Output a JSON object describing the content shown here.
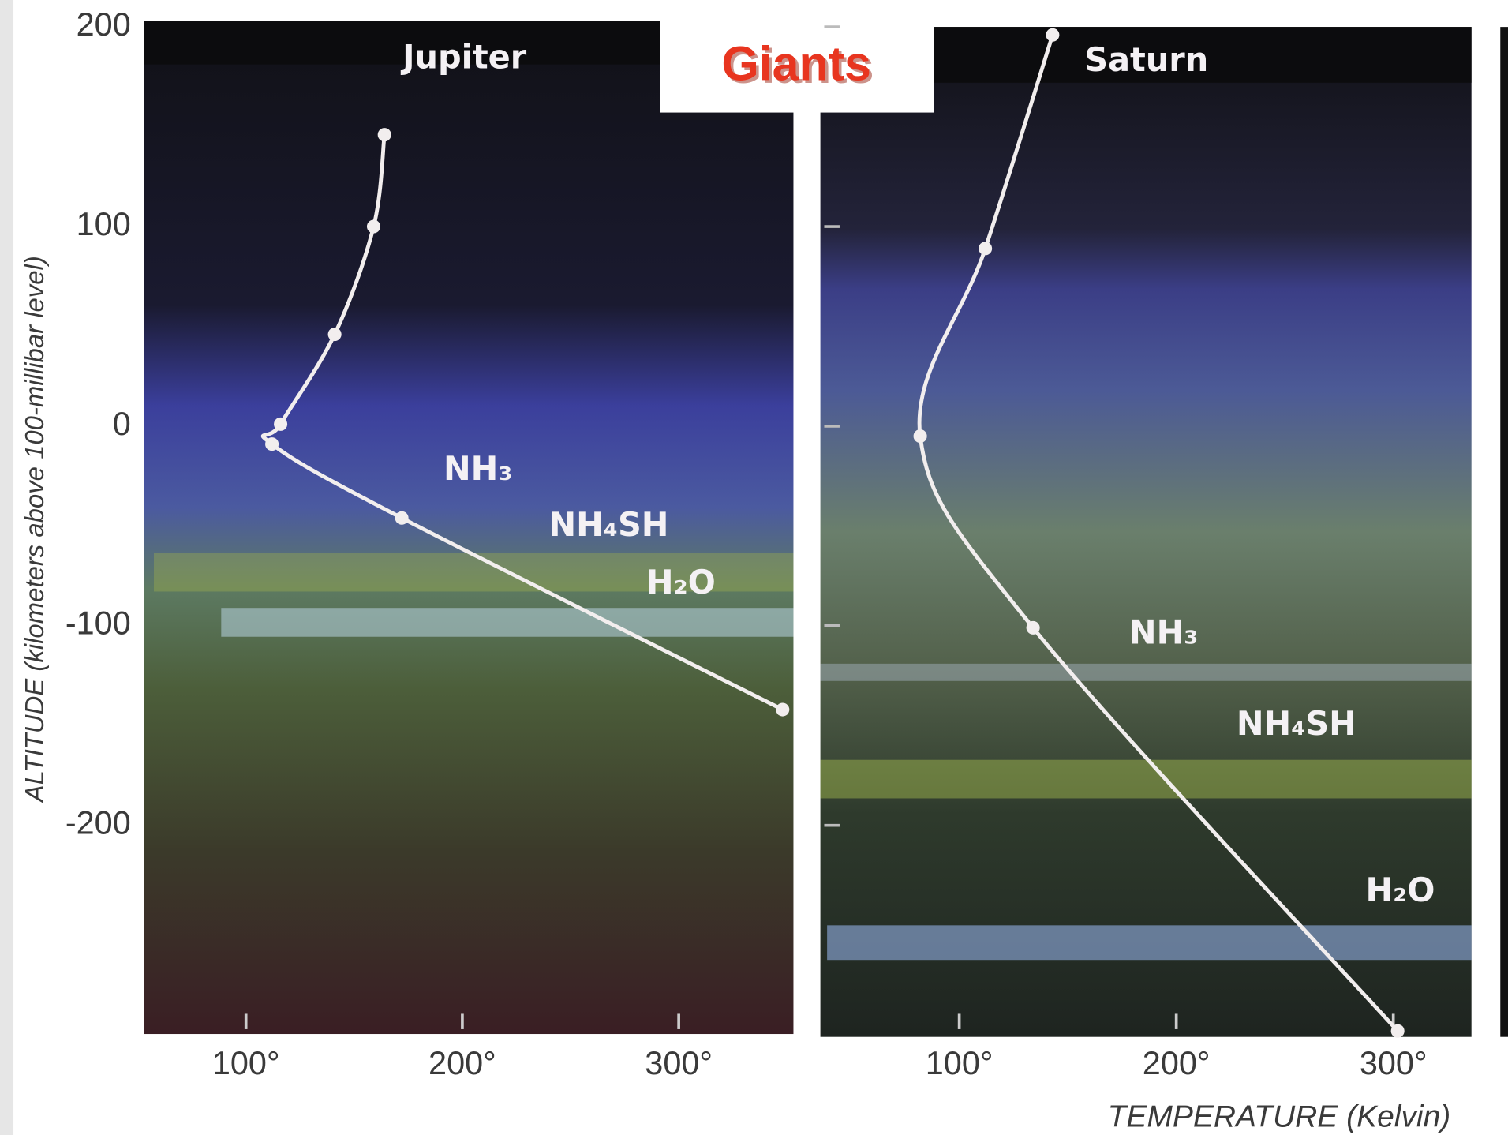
{
  "chart_data": {
    "type": "line",
    "title": "Giants",
    "y_label": "ALTITUDE (kilometers above 100-millibar level)",
    "x_label": "TEMPERATURE (Kelvin)",
    "ylim": [
      -305,
      200
    ],
    "yticks": [
      200,
      100,
      0,
      -100,
      -200
    ],
    "line_color": "#f2eeee",
    "panels": [
      {
        "name": "Jupiter",
        "xlim": [
          53,
          353
        ],
        "xticks": [
          {
            "value": 100,
            "label": "100°"
          },
          {
            "value": 200,
            "label": "200°"
          },
          {
            "value": 300,
            "label": "300°"
          }
        ],
        "x": [
          164,
          159,
          141,
          116,
          112,
          172,
          348
        ],
        "values": [
          146,
          100,
          46,
          1,
          -9,
          -46,
          -142
        ],
        "annotations": [
          "NH₃",
          "NH₄SH",
          "H₂O"
        ]
      },
      {
        "name": "Saturn",
        "xlim": [
          36,
          336
        ],
        "xticks": [
          {
            "value": 100,
            "label": "100°"
          },
          {
            "value": 200,
            "label": "200°"
          },
          {
            "value": 300,
            "label": "300°"
          }
        ],
        "x": [
          143,
          112,
          82,
          134,
          302
        ],
        "values": [
          196,
          89,
          -5,
          -101,
          -303
        ],
        "annotations": [
          "NH₃",
          "NH₄SH",
          "H₂O"
        ]
      }
    ]
  }
}
